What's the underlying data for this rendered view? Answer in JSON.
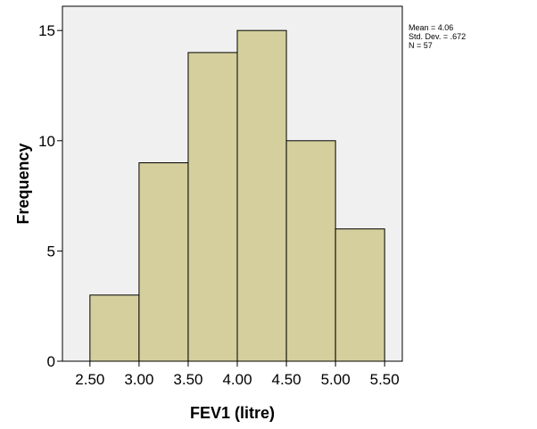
{
  "chart_data": {
    "type": "bar",
    "subtype": "histogram",
    "xlabel": "FEV1 (litre)",
    "ylabel": "Frequency",
    "bin_edges": [
      2.5,
      3.0,
      3.5,
      4.0,
      4.5,
      5.0,
      5.5
    ],
    "values": [
      3,
      9,
      14,
      15,
      10,
      6
    ],
    "x_ticks": [
      2.5,
      3.0,
      3.5,
      4.0,
      4.5,
      5.0,
      5.5
    ],
    "x_tick_labels": [
      "2.50",
      "3.00",
      "3.50",
      "4.00",
      "4.50",
      "5.00",
      "5.50"
    ],
    "y_ticks": [
      0,
      5,
      10,
      15
    ],
    "y_tick_labels": [
      "0",
      "5",
      "10",
      "15"
    ],
    "xlim": [
      2.22,
      5.68
    ],
    "ylim": [
      0,
      16.1
    ],
    "legend_placement": "top-right, outside plot",
    "grid": false,
    "colors": {
      "bar_fill": "#d4cf9c",
      "bar_stroke": "#000000",
      "plot_background": "#f0f0f0"
    }
  },
  "stats": {
    "mean": "Mean = 4.06",
    "std_dev": "Std. Dev. = .672",
    "n": "N = 57"
  }
}
